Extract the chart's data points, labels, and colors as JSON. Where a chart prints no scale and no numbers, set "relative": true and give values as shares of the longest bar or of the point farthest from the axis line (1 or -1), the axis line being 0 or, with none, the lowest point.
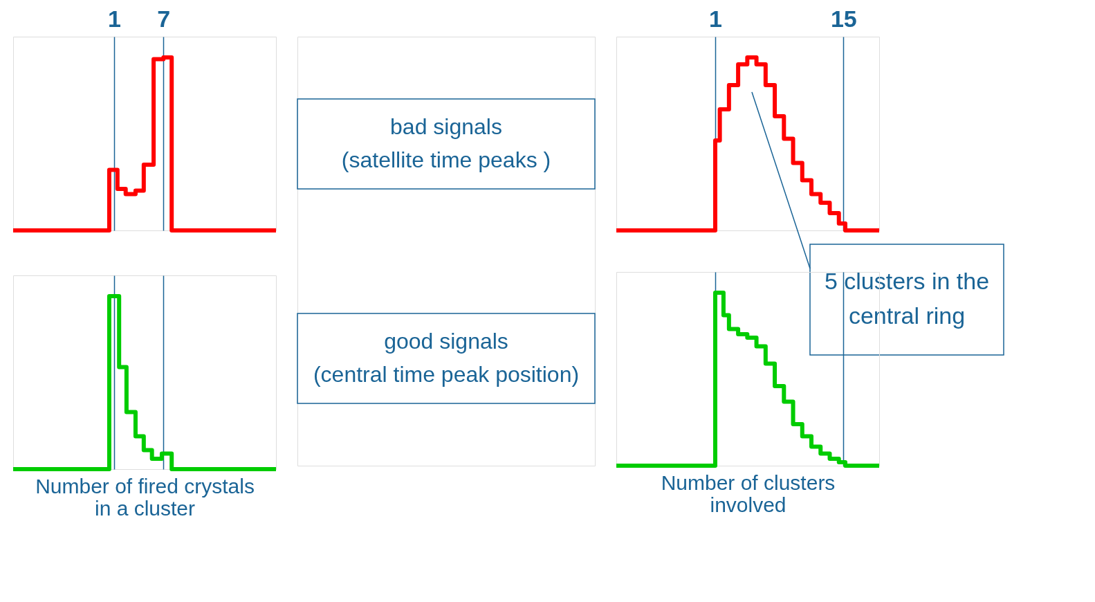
{
  "chart_data": [
    {
      "type": "step",
      "relative": true,
      "tick_labels": "x",
      "grid": "x",
      "xlim": [
        -11.3,
        20.7
      ],
      "xticks": [
        1,
        7
      ],
      "series": [
        {
          "color": "#ff0000",
          "x": [
            -11.3,
            0.4,
            1.4,
            2.4,
            3.6,
            4.6,
            5.8,
            7,
            8,
            20.7
          ],
          "values": [
            0,
            0.35,
            0.24,
            0.21,
            0.23,
            0.38,
            0.99,
            1,
            0,
            0
          ]
        }
      ]
    },
    {
      "type": "step",
      "relative": true,
      "tick_labels": false,
      "grid": "x",
      "xlim": [
        -11.3,
        20.7
      ],
      "xticks": [
        {
          "value": 1,
          "label": null
        },
        {
          "value": 7,
          "label": null
        }
      ],
      "xlabel": "Number of fired crystals\nin a cluster",
      "series": [
        {
          "color": "#00cc00",
          "x": [
            -11.3,
            0.4,
            1.6,
            2.5,
            3.6,
            4.6,
            5.6,
            6.8,
            8,
            20.7
          ],
          "values": [
            0,
            1,
            0.59,
            0.33,
            0.19,
            0.11,
            0.06,
            0.09,
            0,
            0
          ]
        }
      ]
    },
    {
      "type": "step",
      "relative": true,
      "tick_labels": "x",
      "grid": "x",
      "xlim": [
        -9.8,
        18.9
      ],
      "xticks": [
        1,
        15
      ],
      "series": [
        {
          "color": "#ff0000",
          "x": [
            -9.8,
            1,
            1.5,
            2.5,
            3.5,
            4.5,
            5.5,
            6.5,
            7.5,
            8.5,
            9.5,
            10.5,
            11.5,
            12.5,
            13.5,
            14.5,
            15.2,
            18.9
          ],
          "values": [
            0,
            0.52,
            0.7,
            0.84,
            0.96,
            1,
            0.96,
            0.84,
            0.66,
            0.53,
            0.39,
            0.29,
            0.21,
            0.16,
            0.1,
            0.04,
            0,
            0
          ]
        }
      ],
      "annotations": [
        "5 clusters in the\ncentral ring"
      ]
    },
    {
      "type": "step",
      "relative": true,
      "tick_labels": false,
      "grid": "x",
      "xlim": [
        -9.8,
        18.9
      ],
      "xticks": [
        {
          "value": 1,
          "label": null
        },
        {
          "value": 15,
          "label": null
        }
      ],
      "xlabel": "Number of clusters\ninvolved",
      "series": [
        {
          "color": "#00cc00",
          "x": [
            -9.8,
            1,
            1.9,
            2.5,
            3.5,
            4.5,
            5.5,
            6.5,
            7.5,
            8.5,
            9.5,
            10.5,
            11.5,
            12.5,
            13.5,
            14.5,
            15.2,
            18.9
          ],
          "values": [
            0,
            1,
            0.87,
            0.79,
            0.76,
            0.74,
            0.69,
            0.59,
            0.46,
            0.37,
            0.24,
            0.17,
            0.11,
            0.07,
            0.04,
            0.02,
            0,
            0
          ]
        }
      ]
    },
    {
      "type": "other",
      "annotations": [
        "bad signals\n(satellite time peaks )",
        "good signals\n(central time peak position)"
      ]
    }
  ]
}
